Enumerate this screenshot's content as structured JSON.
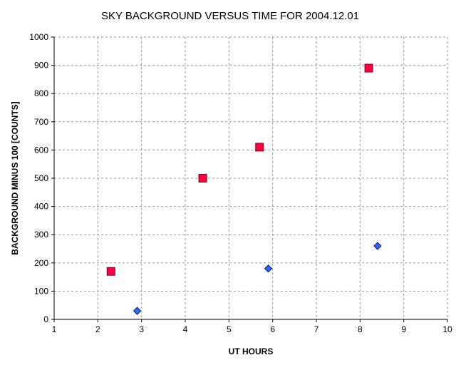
{
  "chart_data": {
    "type": "scatter",
    "title": "SKY BACKGROUND VERSUS TIME FOR 2004.12.01",
    "xlabel": "UT HOURS",
    "ylabel": "BACKGROUND MINUS 100 [COUNTS]",
    "xlim": [
      1,
      10
    ],
    "ylim": [
      0,
      1000
    ],
    "x_ticks": [
      1,
      2,
      3,
      4,
      5,
      6,
      7,
      8,
      9,
      10
    ],
    "y_ticks": [
      0,
      100,
      200,
      300,
      400,
      500,
      600,
      700,
      800,
      900,
      1000
    ],
    "grid": true,
    "legend": "none",
    "series": [
      {
        "marker": "square",
        "color": "#ff0040",
        "edge_color": "#7a0020",
        "x": [
          2.3,
          4.4,
          5.7,
          8.2
        ],
        "y": [
          170,
          500,
          610,
          890
        ]
      },
      {
        "marker": "diamond",
        "color": "#3366ff",
        "edge_color": "#0a1a6e",
        "x": [
          2.9,
          5.9,
          8.4
        ],
        "y": [
          30,
          180,
          260
        ]
      }
    ]
  }
}
